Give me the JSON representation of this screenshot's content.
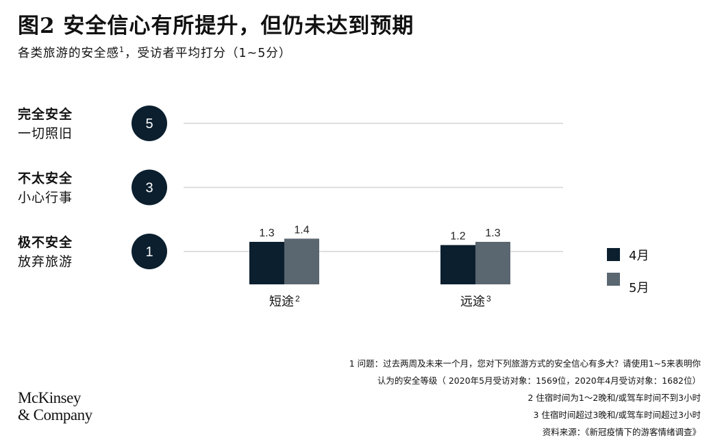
{
  "header": {
    "title": "图2 安全信心有所提升，但仍未达到预期",
    "subtitle_main": "各类旅游的安全感",
    "subtitle_sup": "1",
    "subtitle_rest": "，受访者平均打分（1~5分）"
  },
  "chart_data": {
    "type": "bar",
    "categories": [
      "短途",
      "远途"
    ],
    "category_superscripts": [
      "2",
      "3"
    ],
    "series": [
      {
        "name": "4月",
        "values": [
          1.3,
          1.2
        ],
        "color": "#0b1f2e"
      },
      {
        "name": "5月",
        "values": [
          1.4,
          1.3
        ],
        "color": "#5a6670"
      }
    ],
    "data_labels": [
      [
        "1.3",
        "1.2"
      ],
      [
        "1.4",
        "1.3"
      ]
    ],
    "ylim": [
      1,
      5
    ],
    "scale_levels": [
      {
        "value": 5,
        "label": "5",
        "line1": "完全安全",
        "line2": "一切照旧"
      },
      {
        "value": 3,
        "label": "3",
        "line1": "不太安全",
        "line2": "小心行事"
      },
      {
        "value": 1,
        "label": "1",
        "line1": "极不安全",
        "line2": "放弃旅游"
      }
    ],
    "legend_placement": "right",
    "grid": true
  },
  "footnotes": {
    "note1_line1": "1 问题：过去两周及未来一个月，您对下列旅游方式的安全信心有多大？请使用1~5来表明你",
    "note1_line2": "认为的安全等级（ 2020年5月受访对象：1569位，2020年4月受访对象：1682位）",
    "note2": "2 住宿时间为1～2晚和/或驾车时间不到3小时",
    "note3": "3 住宿时间超过3晚和/或驾车时间超过3小时",
    "source": "资料来源：《新冠疫情下的游客情绪调查》"
  },
  "logo": {
    "line1": "McKinsey",
    "line2": "& Company"
  }
}
